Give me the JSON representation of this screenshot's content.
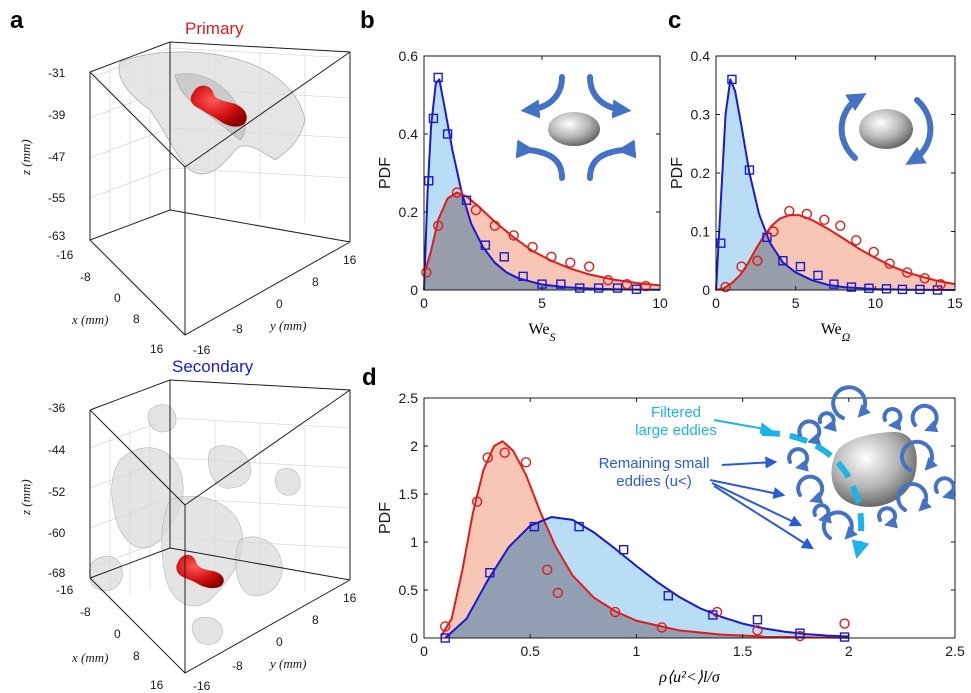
{
  "panel_labels": [
    "a",
    "b",
    "c",
    "d"
  ],
  "panel_a": {
    "top_title": "Primary",
    "bottom_title": "Secondary",
    "top_z_ticks": [
      "-31",
      "-39",
      "-47",
      "-55",
      "-63"
    ],
    "bottom_z_ticks": [
      "-36",
      "-44",
      "-52",
      "-60",
      "-68"
    ],
    "x_ticks": [
      "-16",
      "-8",
      "0",
      "8",
      "16"
    ],
    "y_ticks": [
      "-16",
      "-8",
      "0",
      "8",
      "16"
    ],
    "z_label": "z (mm)",
    "x_label": "x (mm)",
    "y_label": "y (mm)"
  },
  "annotations": {
    "filtered": [
      "Filtered",
      "large eddies"
    ],
    "remaining": [
      "Remaining small",
      "eddies (u<)"
    ]
  },
  "colors": {
    "blue_line": "#1a1acc",
    "red_line": "#e01b1b",
    "blue_fill": "#a7d4f2",
    "red_fill": "#f6b8a3",
    "overlap_fill": "#8a96a8",
    "arrow_blue": "#4472c4",
    "cyan": "#1cb4e8",
    "annotation_blue": "#2a5bd7"
  },
  "chart_data": [
    {
      "id": "b",
      "type": "line",
      "xlabel": "We_S",
      "ylabel": "PDF",
      "xlim": [
        0,
        10
      ],
      "ylim": [
        0,
        0.6
      ],
      "xticks": [
        0,
        5,
        10
      ],
      "yticks": [
        0,
        0.2,
        0.4,
        0.6
      ],
      "series": [
        {
          "color": "blue",
          "marker": "square",
          "points": [
            [
              0.2,
              0.28
            ],
            [
              0.4,
              0.44
            ],
            [
              0.6,
              0.545
            ],
            [
              1.0,
              0.4
            ],
            [
              1.8,
              0.23
            ],
            [
              2.6,
              0.115
            ],
            [
              3.4,
              0.085
            ],
            [
              4.2,
              0.035
            ],
            [
              5.0,
              0.015
            ],
            [
              5.8,
              0.015
            ],
            [
              6.6,
              0.005
            ],
            [
              7.4,
              0.005
            ],
            [
              8.2,
              0.005
            ],
            [
              9.0,
              0.002
            ]
          ],
          "curve": [
            [
              0.0,
              0.0
            ],
            [
              0.15,
              0.25
            ],
            [
              0.3,
              0.42
            ],
            [
              0.5,
              0.53
            ],
            [
              0.65,
              0.54
            ],
            [
              0.9,
              0.46
            ],
            [
              1.2,
              0.36
            ],
            [
              1.6,
              0.25
            ],
            [
              2.0,
              0.17
            ],
            [
              2.5,
              0.11
            ],
            [
              3.0,
              0.07
            ],
            [
              3.5,
              0.045
            ],
            [
              4.0,
              0.03
            ],
            [
              5.0,
              0.014
            ],
            [
              6.0,
              0.007
            ],
            [
              7.0,
              0.004
            ],
            [
              8.0,
              0.002
            ],
            [
              9.0,
              0.001
            ],
            [
              10.0,
              0.0005
            ]
          ]
        },
        {
          "color": "red",
          "marker": "circle",
          "points": [
            [
              0.1,
              0.045
            ],
            [
              0.6,
              0.165
            ],
            [
              1.4,
              0.25
            ],
            [
              2.2,
              0.205
            ],
            [
              3.0,
              0.165
            ],
            [
              3.8,
              0.14
            ],
            [
              4.6,
              0.11
            ],
            [
              5.4,
              0.085
            ],
            [
              6.2,
              0.07
            ],
            [
              7.0,
              0.06
            ],
            [
              7.8,
              0.025
            ],
            [
              8.6,
              0.015
            ],
            [
              9.4,
              0.01
            ]
          ],
          "curve": [
            [
              0.0,
              0.04
            ],
            [
              0.3,
              0.1
            ],
            [
              0.6,
              0.18
            ],
            [
              1.0,
              0.235
            ],
            [
              1.4,
              0.25
            ],
            [
              1.8,
              0.24
            ],
            [
              2.3,
              0.215
            ],
            [
              3.0,
              0.175
            ],
            [
              3.8,
              0.135
            ],
            [
              4.6,
              0.1
            ],
            [
              5.4,
              0.075
            ],
            [
              6.2,
              0.055
            ],
            [
              7.0,
              0.04
            ],
            [
              8.0,
              0.027
            ],
            [
              9.0,
              0.018
            ],
            [
              10.0,
              0.012
            ]
          ]
        }
      ]
    },
    {
      "id": "c",
      "type": "line",
      "xlabel": "We_Ω",
      "ylabel": "PDF",
      "xlim": [
        0,
        15
      ],
      "ylim": [
        0,
        0.4
      ],
      "xticks": [
        0,
        5,
        10,
        15
      ],
      "yticks": [
        0,
        0.1,
        0.2,
        0.3,
        0.4
      ],
      "series": [
        {
          "color": "blue",
          "marker": "square",
          "points": [
            [
              0.3,
              0.08
            ],
            [
              1.0,
              0.36
            ],
            [
              2.1,
              0.205
            ],
            [
              3.2,
              0.09
            ],
            [
              4.2,
              0.05
            ],
            [
              5.3,
              0.04
            ],
            [
              6.4,
              0.025
            ],
            [
              7.4,
              0.01
            ],
            [
              8.5,
              0.005
            ],
            [
              9.6,
              0.003
            ],
            [
              10.7,
              0.002
            ],
            [
              11.7,
              0.001
            ],
            [
              12.8,
              0.001
            ],
            [
              13.9,
              0.0
            ]
          ],
          "curve": [
            [
              0.0,
              0.0
            ],
            [
              0.3,
              0.15
            ],
            [
              0.6,
              0.3
            ],
            [
              0.9,
              0.36
            ],
            [
              1.2,
              0.34
            ],
            [
              1.6,
              0.28
            ],
            [
              2.1,
              0.2
            ],
            [
              2.7,
              0.13
            ],
            [
              3.4,
              0.08
            ],
            [
              4.2,
              0.047
            ],
            [
              5.0,
              0.03
            ],
            [
              6.0,
              0.017
            ],
            [
              7.0,
              0.009
            ],
            [
              8.0,
              0.005
            ],
            [
              10.0,
              0.0015
            ],
            [
              12.0,
              0.0005
            ],
            [
              15.0,
              0.0001
            ]
          ]
        },
        {
          "color": "red",
          "marker": "circle",
          "points": [
            [
              0.6,
              0.005
            ],
            [
              1.6,
              0.04
            ],
            [
              2.6,
              0.05
            ],
            [
              3.6,
              0.1
            ],
            [
              4.6,
              0.135
            ],
            [
              5.7,
              0.13
            ],
            [
              6.8,
              0.12
            ],
            [
              7.8,
              0.11
            ],
            [
              8.8,
              0.085
            ],
            [
              9.9,
              0.065
            ],
            [
              10.9,
              0.045
            ],
            [
              12.0,
              0.03
            ],
            [
              13.1,
              0.02
            ],
            [
              14.1,
              0.01
            ]
          ],
          "curve": [
            [
              0.0,
              0.0
            ],
            [
              0.5,
              0.003
            ],
            [
              1.0,
              0.012
            ],
            [
              1.5,
              0.025
            ],
            [
              2.0,
              0.045
            ],
            [
              2.5,
              0.07
            ],
            [
              3.0,
              0.092
            ],
            [
              3.5,
              0.11
            ],
            [
              4.0,
              0.122
            ],
            [
              4.6,
              0.128
            ],
            [
              5.2,
              0.128
            ],
            [
              6.0,
              0.12
            ],
            [
              7.0,
              0.105
            ],
            [
              8.0,
              0.088
            ],
            [
              9.0,
              0.07
            ],
            [
              10.0,
              0.055
            ],
            [
              11.0,
              0.041
            ],
            [
              12.0,
              0.03
            ],
            [
              13.0,
              0.022
            ],
            [
              14.0,
              0.015
            ],
            [
              15.0,
              0.01
            ]
          ]
        }
      ]
    },
    {
      "id": "d",
      "type": "line",
      "xlabel": "ρ⟨u²<⟩l/σ",
      "ylabel": "PDF",
      "xlim": [
        0,
        2.5
      ],
      "ylim": [
        0,
        2.5
      ],
      "xticks": [
        0,
        0.5,
        1,
        1.5,
        2,
        2.5
      ],
      "yticks": [
        0,
        0.5,
        1,
        1.5,
        2,
        2.5
      ],
      "series": [
        {
          "color": "red",
          "marker": "circle",
          "points": [
            [
              0.1,
              0.12
            ],
            [
              0.25,
              1.42
            ],
            [
              0.3,
              1.88
            ],
            [
              0.38,
              1.93
            ],
            [
              0.48,
              1.83
            ],
            [
              0.58,
              0.71
            ],
            [
              0.63,
              0.47
            ],
            [
              0.9,
              0.27
            ],
            [
              1.12,
              0.11
            ],
            [
              1.38,
              0.27
            ],
            [
              1.57,
              0.08
            ],
            [
              1.77,
              0.02
            ],
            [
              1.98,
              0.15
            ]
          ],
          "curve": [
            [
              0.08,
              0.02
            ],
            [
              0.13,
              0.2
            ],
            [
              0.18,
              0.7
            ],
            [
              0.23,
              1.3
            ],
            [
              0.28,
              1.75
            ],
            [
              0.33,
              2.0
            ],
            [
              0.37,
              2.05
            ],
            [
              0.42,
              1.95
            ],
            [
              0.48,
              1.7
            ],
            [
              0.55,
              1.3
            ],
            [
              0.62,
              0.95
            ],
            [
              0.7,
              0.65
            ],
            [
              0.8,
              0.42
            ],
            [
              0.9,
              0.28
            ],
            [
              1.0,
              0.18
            ],
            [
              1.2,
              0.08
            ],
            [
              1.4,
              0.035
            ],
            [
              1.6,
              0.015
            ],
            [
              1.8,
              0.006
            ],
            [
              2.0,
              0.003
            ]
          ]
        },
        {
          "color": "blue",
          "marker": "square",
          "points": [
            [
              0.1,
              0.0
            ],
            [
              0.31,
              0.68
            ],
            [
              0.52,
              1.16
            ],
            [
              0.73,
              1.16
            ],
            [
              0.94,
              0.92
            ],
            [
              1.15,
              0.44
            ],
            [
              1.36,
              0.24
            ],
            [
              1.57,
              0.19
            ],
            [
              1.77,
              0.05
            ],
            [
              1.98,
              0.01
            ]
          ],
          "curve": [
            [
              0.1,
              0.0
            ],
            [
              0.2,
              0.2
            ],
            [
              0.3,
              0.6
            ],
            [
              0.4,
              0.95
            ],
            [
              0.5,
              1.17
            ],
            [
              0.6,
              1.26
            ],
            [
              0.7,
              1.23
            ],
            [
              0.8,
              1.1
            ],
            [
              0.9,
              0.93
            ],
            [
              1.0,
              0.75
            ],
            [
              1.1,
              0.58
            ],
            [
              1.2,
              0.43
            ],
            [
              1.3,
              0.31
            ],
            [
              1.4,
              0.22
            ],
            [
              1.5,
              0.15
            ],
            [
              1.6,
              0.1
            ],
            [
              1.7,
              0.065
            ],
            [
              1.8,
              0.04
            ],
            [
              1.9,
              0.025
            ],
            [
              2.0,
              0.015
            ]
          ]
        }
      ]
    }
  ]
}
